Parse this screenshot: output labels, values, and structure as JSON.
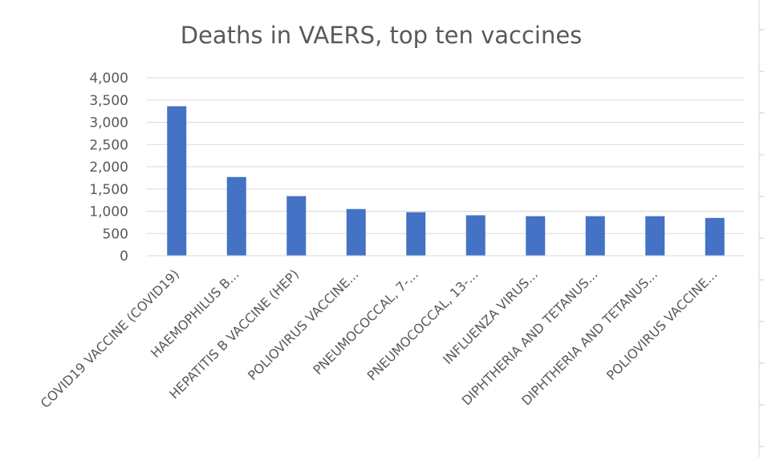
{
  "colors": {
    "bar": "#4472c4",
    "gridline": "#d9d9d9",
    "text": "#595959",
    "background": "#ffffff"
  },
  "chart_data": {
    "type": "bar",
    "title": "Deaths in VAERS, top ten vaccines",
    "xlabel": "",
    "ylabel": "",
    "ylim": [
      0,
      4000
    ],
    "yticks": [
      0,
      500,
      1000,
      1500,
      2000,
      2500,
      3000,
      3500,
      4000
    ],
    "ytick_labels": [
      "0",
      "500",
      "1,000",
      "1,500",
      "2,000",
      "2,500",
      "3,000",
      "3,500",
      "4,000"
    ],
    "grid": true,
    "legend": "none",
    "categories": [
      "COVID19 VACCINE (COVID19)",
      "HAEMOPHILUS B...",
      "HEPATITIS B VACCINE (HEP)",
      "POLIOVIRUS VACCINE...",
      "PNEUMOCOCCAL, 7-...",
      "PNEUMOCOCCAL, 13-...",
      "INFLUENZA VIRUS...",
      "DIPHTHERIA AND TETANUS...",
      "DIPHTHERIA AND TETANUS...",
      "POLIOVIRUS VACCINE..."
    ],
    "values": [
      3360,
      1770,
      1340,
      1050,
      980,
      910,
      890,
      890,
      890,
      850
    ]
  }
}
